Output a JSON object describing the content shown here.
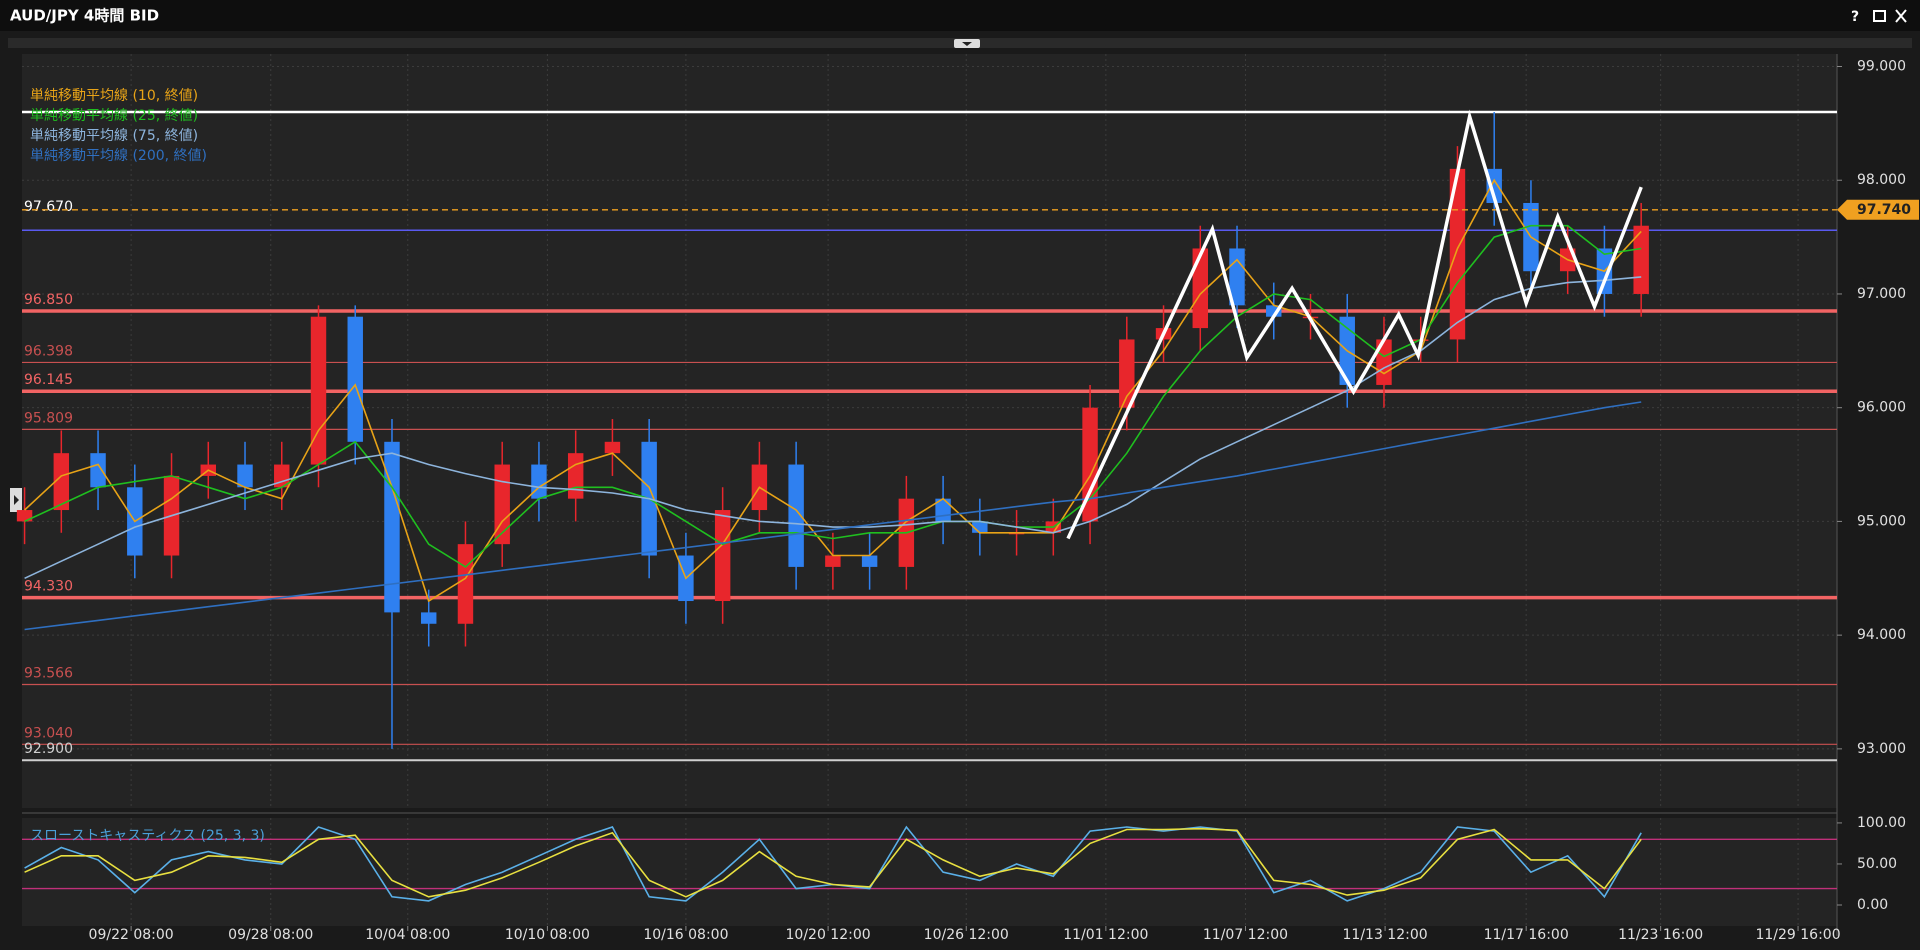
{
  "window": {
    "title": "AUD/JPY 4時間 BID",
    "help": "?"
  },
  "chart_data": [
    {
      "type": "candlestick",
      "x": [
        0,
        1,
        2,
        3,
        4,
        5,
        6,
        7,
        8,
        9,
        10,
        11,
        12,
        13,
        14,
        15,
        16,
        17,
        18,
        19,
        20,
        21,
        22,
        23,
        24,
        25,
        26,
        27,
        28,
        29,
        30,
        31,
        32,
        33,
        34,
        35,
        36,
        37,
        38,
        39,
        40,
        41,
        42,
        43,
        44
      ],
      "open": [
        95.0,
        95.1,
        95.6,
        95.3,
        94.7,
        95.4,
        95.5,
        95.3,
        95.5,
        96.8,
        95.7,
        94.2,
        94.1,
        94.8,
        95.5,
        95.2,
        95.6,
        95.7,
        94.7,
        94.3,
        95.1,
        95.5,
        94.6,
        94.7,
        94.6,
        95.2,
        95.0,
        94.9,
        94.9,
        95.0,
        96.0,
        96.6,
        96.7,
        97.4,
        96.9,
        96.8,
        96.8,
        96.2,
        96.6,
        96.6,
        98.1,
        97.8,
        97.2,
        97.4,
        97.0
      ],
      "high": [
        95.3,
        95.8,
        95.8,
        95.5,
        95.6,
        95.7,
        95.7,
        95.7,
        96.9,
        96.9,
        95.9,
        94.4,
        95.0,
        95.7,
        95.7,
        95.8,
        95.9,
        95.9,
        94.9,
        95.3,
        95.7,
        95.7,
        94.9,
        94.9,
        95.4,
        95.4,
        95.2,
        95.1,
        95.2,
        96.2,
        96.8,
        96.9,
        97.6,
        97.6,
        97.1,
        97.0,
        97.0,
        96.8,
        96.8,
        98.3,
        98.6,
        98.0,
        97.6,
        97.6,
        97.8
      ],
      "low": [
        94.8,
        94.9,
        95.1,
        94.5,
        94.5,
        95.2,
        95.1,
        95.1,
        95.3,
        95.5,
        93.0,
        93.9,
        93.9,
        94.6,
        95.0,
        95.0,
        95.4,
        94.5,
        94.1,
        94.1,
        94.9,
        94.4,
        94.4,
        94.4,
        94.4,
        94.8,
        94.7,
        94.7,
        94.7,
        94.8,
        95.8,
        96.4,
        96.5,
        96.7,
        96.6,
        96.6,
        96.0,
        96.0,
        96.4,
        96.4,
        97.6,
        97.0,
        97.0,
        96.8,
        96.8
      ],
      "close": [
        95.1,
        95.6,
        95.3,
        94.7,
        95.4,
        95.5,
        95.3,
        95.5,
        96.8,
        95.7,
        94.2,
        94.1,
        94.8,
        95.5,
        95.2,
        95.6,
        95.7,
        94.7,
        94.3,
        95.1,
        95.5,
        94.6,
        94.7,
        94.6,
        95.2,
        95.0,
        94.9,
        94.9,
        95.0,
        96.0,
        96.6,
        96.7,
        97.4,
        96.9,
        96.8,
        96.8,
        96.2,
        96.6,
        96.6,
        98.1,
        97.8,
        97.2,
        97.4,
        97.0,
        97.6
      ],
      "up_color": "#e8262c",
      "down_color": "#2f80f0",
      "series": [
        {
          "name": "単純移動平均線 (10, 終値)",
          "color": "#e8a317",
          "values": [
            95.1,
            95.4,
            95.5,
            95.0,
            95.2,
            95.45,
            95.3,
            95.2,
            95.8,
            96.2,
            95.3,
            94.3,
            94.5,
            95.0,
            95.3,
            95.5,
            95.6,
            95.3,
            94.5,
            94.8,
            95.3,
            95.1,
            94.7,
            94.7,
            95.0,
            95.2,
            94.9,
            94.9,
            94.9,
            95.4,
            96.1,
            96.5,
            97.0,
            97.3,
            96.9,
            96.8,
            96.5,
            96.3,
            96.5,
            97.4,
            98.0,
            97.5,
            97.3,
            97.2,
            97.55
          ]
        },
        {
          "name": "単純移動平均線 (25, 終値)",
          "color": "#1fbf1f",
          "values": [
            95.0,
            95.15,
            95.3,
            95.35,
            95.4,
            95.3,
            95.2,
            95.3,
            95.5,
            95.7,
            95.3,
            94.8,
            94.6,
            94.9,
            95.2,
            95.3,
            95.3,
            95.2,
            95.0,
            94.8,
            94.9,
            94.9,
            94.85,
            94.9,
            94.9,
            95.0,
            95.0,
            94.95,
            94.95,
            95.2,
            95.6,
            96.1,
            96.5,
            96.8,
            97.0,
            96.95,
            96.7,
            96.45,
            96.6,
            97.1,
            97.5,
            97.6,
            97.6,
            97.35,
            97.4
          ]
        },
        {
          "name": "単純移動平均線 (75, 終値)",
          "color": "#8db4dc",
          "values": [
            94.5,
            94.65,
            94.8,
            94.95,
            95.05,
            95.15,
            95.25,
            95.35,
            95.45,
            95.55,
            95.6,
            95.5,
            95.42,
            95.35,
            95.3,
            95.28,
            95.25,
            95.2,
            95.1,
            95.05,
            95.0,
            94.98,
            94.95,
            94.95,
            94.97,
            95.0,
            95.0,
            94.95,
            94.9,
            95.0,
            95.15,
            95.35,
            95.55,
            95.7,
            95.85,
            96.0,
            96.15,
            96.35,
            96.5,
            96.75,
            96.95,
            97.05,
            97.1,
            97.12,
            97.15
          ]
        },
        {
          "name": "単純移動平均線 (200, 終値)",
          "color": "#2f6fc0",
          "values": [
            94.05,
            94.09,
            94.13,
            94.17,
            94.21,
            94.25,
            94.29,
            94.33,
            94.37,
            94.41,
            94.45,
            94.49,
            94.53,
            94.57,
            94.61,
            94.65,
            94.69,
            94.73,
            94.77,
            94.81,
            94.85,
            94.89,
            94.93,
            94.97,
            95.01,
            95.05,
            95.09,
            95.13,
            95.17,
            95.2,
            95.25,
            95.3,
            95.35,
            95.4,
            95.46,
            95.52,
            95.58,
            95.64,
            95.7,
            95.76,
            95.82,
            95.88,
            95.94,
            96.0,
            96.05
          ]
        }
      ],
      "levels": [
        {
          "value": 98.6,
          "color": "#ffffff",
          "width": 2.5
        },
        {
          "value": 97.56,
          "color": "#5a5af0",
          "width": 1.5
        },
        {
          "value": 97.67,
          "label": "97.670",
          "color": "#ffffff",
          "width": 0
        },
        {
          "value": 96.85,
          "label": "96.850",
          "color": "#f26464",
          "width": 3.5
        },
        {
          "value": 96.398,
          "label": "96.398",
          "color": "#c85050",
          "width": 1.2
        },
        {
          "value": 96.145,
          "label": "96.145",
          "color": "#f26464",
          "width": 3.5
        },
        {
          "value": 95.809,
          "label": "95.809",
          "color": "#c85050",
          "width": 1.2
        },
        {
          "value": 94.33,
          "label": "94.330",
          "color": "#f26464",
          "width": 3.5
        },
        {
          "value": 93.566,
          "label": "93.566",
          "color": "#c85050",
          "width": 1.2
        },
        {
          "value": 93.04,
          "label": "93.040",
          "color": "#c85050",
          "width": 1.2
        },
        {
          "value": 92.9,
          "label": "92.900",
          "color": "#d0d0d0",
          "width": 2
        }
      ],
      "last": {
        "value": 97.74,
        "label": "97.740",
        "color": "#f0a020"
      },
      "zigzag": {
        "color": "#ffffff",
        "x": [
          28.4,
          32.33,
          33.27,
          34.5,
          36.17,
          37.4,
          37.93,
          39.33,
          40.87,
          41.73,
          42.73,
          44.0
        ],
        "y": [
          94.85,
          97.57,
          96.44,
          97.05,
          96.14,
          96.82,
          96.46,
          98.56,
          96.92,
          97.68,
          96.89,
          97.94
        ]
      },
      "xlim": [
        -0.07,
        49.33
      ],
      "xticks": [
        {
          "value": 2.9,
          "label": "09/22 08:00"
        },
        {
          "value": 6.7,
          "label": "09/28 08:00"
        },
        {
          "value": 10.43,
          "label": "10/04 08:00"
        },
        {
          "value": 14.23,
          "label": "10/10 08:00"
        },
        {
          "value": 18.0,
          "label": "10/16 08:00"
        },
        {
          "value": 21.87,
          "label": "10/20 12:00"
        },
        {
          "value": 25.63,
          "label": "10/26 12:00"
        },
        {
          "value": 29.43,
          "label": "11/01 12:00"
        },
        {
          "value": 33.23,
          "label": "11/07 12:00"
        },
        {
          "value": 37.03,
          "label": "11/13 12:00"
        },
        {
          "value": 40.87,
          "label": "11/17 16:00"
        },
        {
          "value": 44.53,
          "label": "11/23 16:00"
        },
        {
          "value": 48.27,
          "label": "11/29 16:00"
        }
      ],
      "ylim": [
        92.48,
        99.11
      ],
      "yticks": [
        {
          "value": 93,
          "label": "93.000"
        },
        {
          "value": 94,
          "label": "94.000"
        },
        {
          "value": 95,
          "label": "95.000"
        },
        {
          "value": 96,
          "label": "96.000"
        },
        {
          "value": 97,
          "label": "97.000"
        },
        {
          "value": 98,
          "label": "98.000"
        },
        {
          "value": 99,
          "label": "99.000"
        }
      ],
      "grid": true
    },
    {
      "type": "line",
      "title": "スローストキャスティクス (25, 3, 3)",
      "series": [
        {
          "color": "#5ab0e8",
          "values": [
            45,
            70,
            55,
            15,
            55,
            65,
            55,
            50,
            95,
            80,
            10,
            5,
            25,
            40,
            60,
            80,
            95,
            10,
            5,
            40,
            80,
            20,
            25,
            20,
            95,
            40,
            30,
            50,
            35,
            90,
            95,
            90,
            95,
            90,
            15,
            30,
            5,
            20,
            40,
            95,
            90,
            40,
            60,
            10,
            88
          ]
        },
        {
          "color": "#e8e040",
          "values": [
            40,
            60,
            60,
            30,
            40,
            60,
            58,
            52,
            80,
            85,
            30,
            10,
            18,
            33,
            52,
            72,
            88,
            30,
            10,
            30,
            65,
            35,
            25,
            22,
            80,
            55,
            35,
            45,
            38,
            75,
            92,
            92,
            93,
            91,
            30,
            25,
            12,
            18,
            33,
            80,
            92,
            55,
            55,
            20,
            80
          ]
        }
      ],
      "bands": [
        80,
        20
      ],
      "band_color": "#c0307a",
      "ylim": [
        -25.6,
        106
      ],
      "yticks": [
        {
          "value": 0,
          "label": "0.00"
        },
        {
          "value": 50,
          "label": "50.00"
        },
        {
          "value": 100,
          "label": "100.00"
        }
      ]
    }
  ]
}
